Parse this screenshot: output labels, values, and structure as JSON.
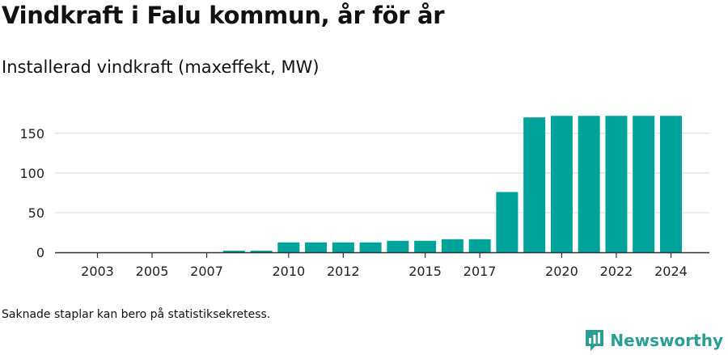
{
  "header": {
    "title": "Vindkraft i Falu kommun, år för år",
    "subtitle": "Installerad vindkraft (maxeffekt, MW)"
  },
  "footer": {
    "note": "Saknade staplar kan bero på statistiksekretess.",
    "brand": "Newsworthy",
    "brand_icon": "newsworthy-logo-icon"
  },
  "colors": {
    "bar": "#00a39a",
    "grid": "#dddddd",
    "axis": "#333333",
    "brand": "#2a9d95"
  },
  "chart_data": {
    "type": "bar",
    "title": "Vindkraft i Falu kommun, år för år",
    "subtitle": "Installerad vindkraft (maxeffekt, MW)",
    "xlabel": "",
    "ylabel": "",
    "ylim": [
      0,
      175
    ],
    "yticks": [
      0,
      50,
      100,
      150
    ],
    "grid": true,
    "legend": "none",
    "categories": [
      2003,
      2004,
      2005,
      2006,
      2007,
      2008,
      2009,
      2010,
      2011,
      2012,
      2013,
      2014,
      2015,
      2016,
      2017,
      2018,
      2019,
      2020,
      2021,
      2022,
      2023,
      2024
    ],
    "xtick_labels": [
      "2003",
      "2005",
      "2007",
      "2010",
      "2012",
      "2015",
      "2017",
      "2020",
      "2022",
      "2024"
    ],
    "values": [
      0,
      0,
      0,
      0,
      0,
      2,
      2,
      12.5,
      12.5,
      12.5,
      12.5,
      14.5,
      14.5,
      16.5,
      16.5,
      76,
      170,
      172,
      172,
      172,
      172,
      172
    ]
  }
}
